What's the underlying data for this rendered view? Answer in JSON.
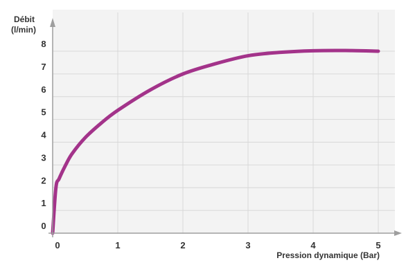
{
  "chart_data": {
    "type": "line",
    "title": "",
    "ylabel_line1": "Débit",
    "ylabel_line2": "(l/min)",
    "xlabel": "Pression dynamique (Bar)",
    "xlim": [
      0,
      5
    ],
    "ylim": [
      0,
      8
    ],
    "x_ticks": [
      "0",
      "1",
      "2",
      "3",
      "4",
      "5"
    ],
    "y_ticks": [
      "0",
      "1",
      "2",
      "3",
      "4",
      "5",
      "6",
      "7",
      "8"
    ],
    "grid": true,
    "series": [
      {
        "x": [
          0,
          0.05,
          0.1,
          0.2,
          0.3,
          0.5,
          0.75,
          1.0,
          1.5,
          2.0,
          2.5,
          3.0,
          3.5,
          4.0,
          4.5,
          5.0
        ],
        "y": [
          0,
          2.0,
          2.4,
          3.0,
          3.5,
          4.2,
          4.85,
          5.4,
          6.3,
          7.0,
          7.45,
          7.8,
          7.95,
          8.02,
          8.03,
          8.0
        ]
      }
    ]
  },
  "colors": {
    "plot_background": "#f3f3f3",
    "grid": "#d8d8d8",
    "axis": "#9e9e9e",
    "line": "#a3338a"
  }
}
